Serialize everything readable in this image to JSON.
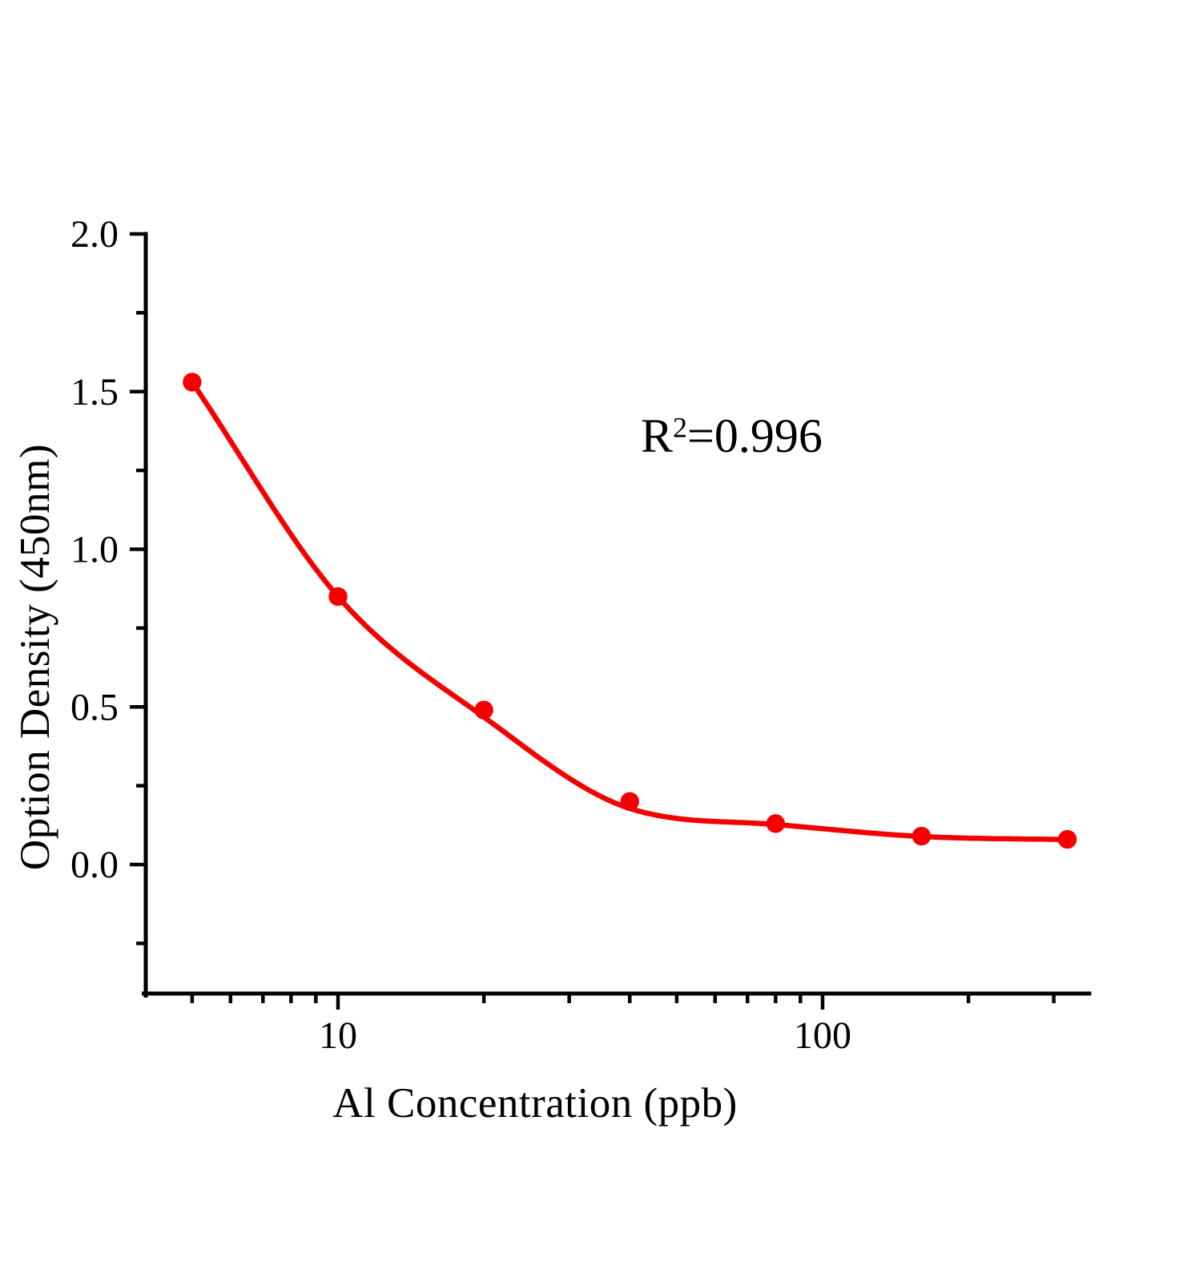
{
  "figure": {
    "background_color": "#ffffff",
    "axis_color": "#000000",
    "text_color": "#000000"
  },
  "chart_data": {
    "type": "scatter",
    "title": "",
    "xlabel": "Al Concentration (ppb)",
    "ylabel": "Option Density (450nm)",
    "annotation": "R²=0.996",
    "annotation_parts": {
      "base": "R",
      "sup": "2",
      "rest": "=0.996"
    },
    "xscale": "log",
    "yscale": "linear",
    "x": [
      5,
      10,
      20,
      40,
      80,
      160,
      320
    ],
    "y": [
      1.53,
      0.85,
      0.49,
      0.2,
      0.13,
      0.09,
      0.08
    ],
    "fit_y": [
      1.53,
      0.85,
      0.468,
      0.178,
      0.127,
      0.089,
      0.079
    ],
    "xlim": [
      4.0,
      355
    ],
    "ylim": [
      -0.41,
      2.0
    ],
    "x_major_ticks": [
      10,
      100
    ],
    "x_major_labels": [
      "10",
      "100"
    ],
    "x_minor_ticks": [
      5,
      6,
      7,
      8,
      9,
      20,
      30,
      40,
      50,
      60,
      70,
      80,
      90,
      200,
      300
    ],
    "y_major_ticks": [
      0.0,
      0.5,
      1.0,
      1.5,
      2.0
    ],
    "y_major_labels": [
      "0.0",
      "0.5",
      "1.0",
      "1.5",
      "2.0"
    ],
    "y_minor_ticks": [
      -0.25,
      0.25,
      0.75,
      1.25,
      1.75
    ],
    "grid": false,
    "legend": null,
    "colors": {
      "curve": "#f40000",
      "marker": "#f40000",
      "axis": "#000000",
      "text": "#000000"
    }
  }
}
